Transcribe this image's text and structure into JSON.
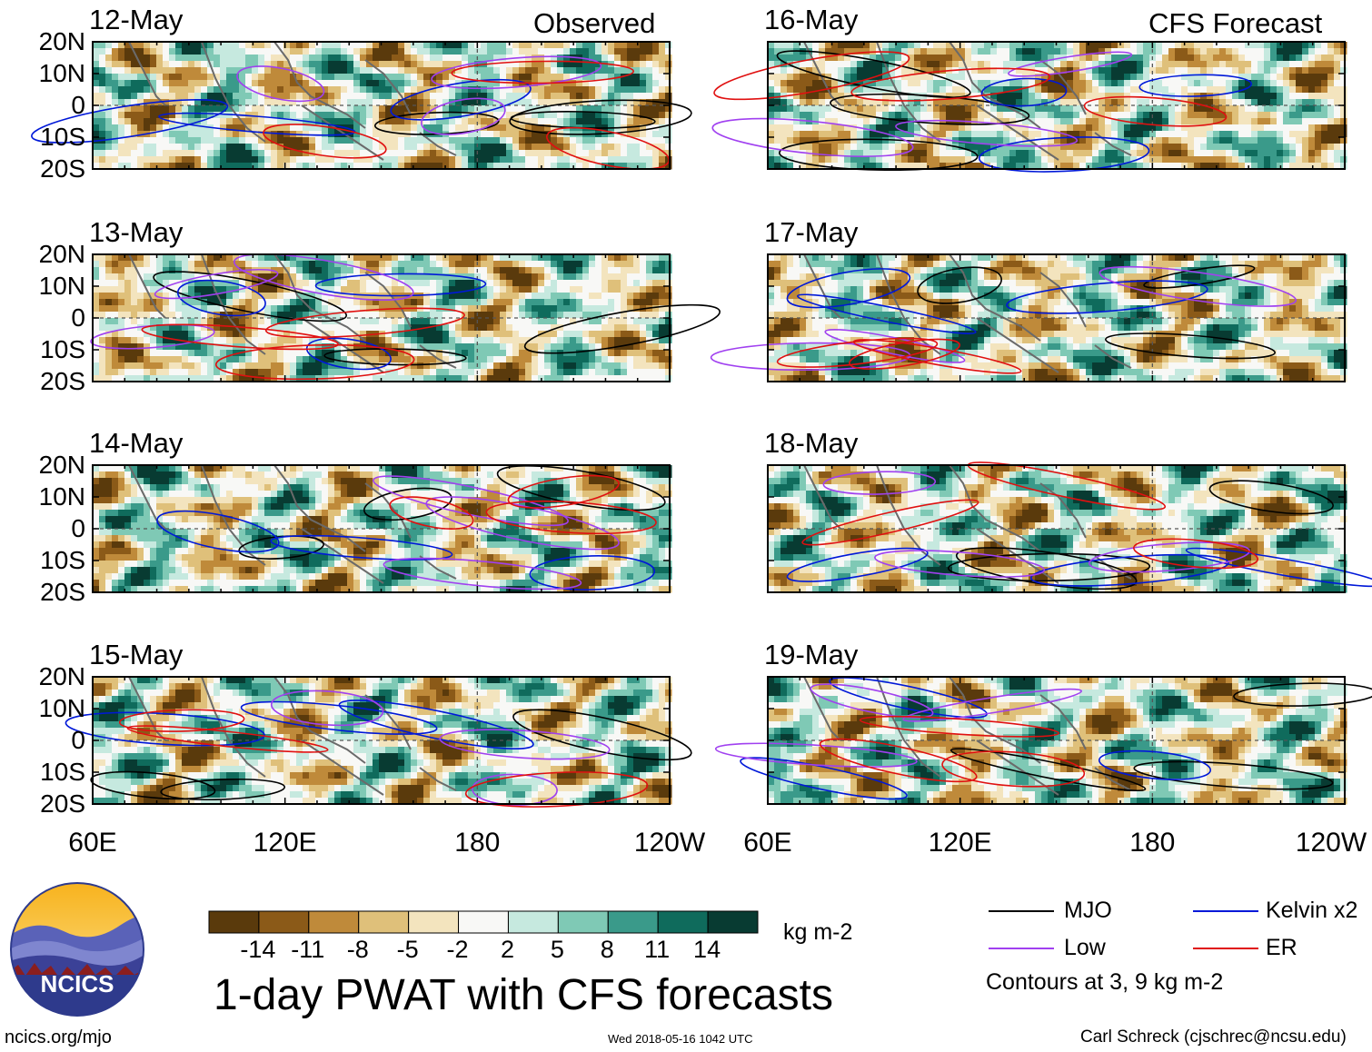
{
  "chart_data": {
    "type": "heatmap",
    "title": "1-day PWAT with CFS forecasts",
    "variable": "PWAT anomaly",
    "units": "kg m-2",
    "columns": [
      {
        "title": "Observed",
        "dates": [
          "12-May",
          "13-May",
          "14-May",
          "15-May"
        ]
      },
      {
        "title": "CFS Forecast",
        "dates": [
          "16-May",
          "17-May",
          "18-May",
          "19-May"
        ]
      }
    ],
    "lat_ticks": [
      "20N",
      "10N",
      "0",
      "10S",
      "20S"
    ],
    "lon_ticks": [
      "60E",
      "120E",
      "180",
      "120W"
    ],
    "lat_range": [
      -20,
      20
    ],
    "lon_range": [
      60,
      240
    ],
    "colorbar": {
      "ticks": [
        "-14",
        "-11",
        "-8",
        "-5",
        "-2",
        "2",
        "5",
        "8",
        "11",
        "14"
      ],
      "colors": [
        "#5a3a0c",
        "#8b5a18",
        "#bf8a3a",
        "#dfc07a",
        "#f3e4be",
        "#f8f8f6",
        "#c6e9df",
        "#7fc9b5",
        "#3a9a8a",
        "#0f6b5c",
        "#083b32"
      ]
    },
    "legend": [
      {
        "label": "MJO",
        "color": "#000000"
      },
      {
        "label": "Kelvin x2",
        "color": "#0018d8"
      },
      {
        "label": "Low",
        "color": "#a040f0"
      },
      {
        "label": "ER",
        "color": "#e01010"
      }
    ],
    "contour_note": "Contours at 3, 9 kg m-2"
  },
  "footer": {
    "logo_text": "NCICS",
    "url": "ncics.org/mjo",
    "timestamp": "Wed 2018-05-16 1042 UTC",
    "credit": "Carl Schreck (cjschrec@ncsu.edu)"
  }
}
